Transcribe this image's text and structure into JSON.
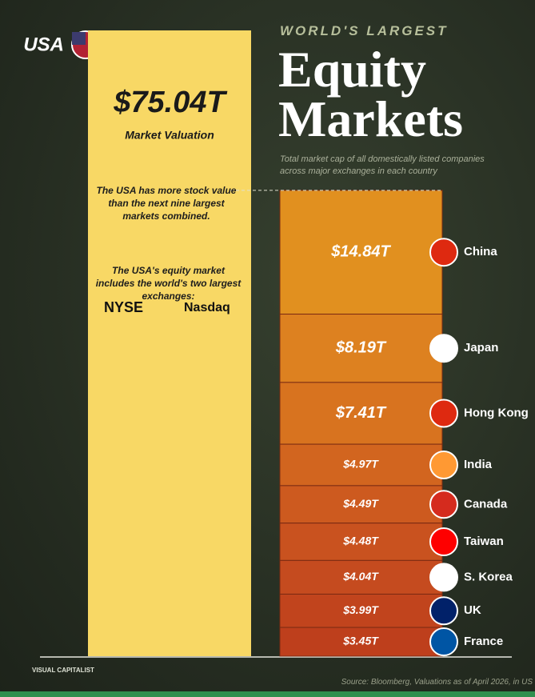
{
  "chart_data": {
    "type": "stack",
    "kicker": "WORLD'S LARGEST",
    "title_line1": "Equity",
    "title_line2": "Markets",
    "subtitle": "Total market cap of all domestically listed companies across major exchanges in each country",
    "usa": {
      "name": "USA",
      "value": 75.04,
      "value_label": "$75.04T",
      "label": "Market Valuation",
      "color": "#f8d865"
    },
    "annotation_1": "The USA has more stock value than the next nine largest markets combined.",
    "annotation_2": "The USA's equity market includes the world's two largest exchanges:",
    "exchanges": [
      "NYSE",
      "Nasdaq"
    ],
    "categories": [
      "China",
      "Japan",
      "Hong Kong",
      "India",
      "Canada",
      "Taiwan",
      "S. Korea",
      "UK",
      "France"
    ],
    "values": [
      14.84,
      8.19,
      7.41,
      4.97,
      4.49,
      4.48,
      4.04,
      3.99,
      3.45
    ],
    "value_labels": [
      "$14.84T",
      "$8.19T",
      "$7.41T",
      "$4.97T",
      "$4.49T",
      "$4.48T",
      "$4.04T",
      "$3.99T",
      "$3.45T"
    ],
    "colors": [
      "#e1901f",
      "#dd8120",
      "#d8731f",
      "#d2651f",
      "#cd5a1f",
      "#c9521f",
      "#c54b1f",
      "#c1441d",
      "#be3f1c"
    ],
    "brand": "VISUAL CAPITALIST",
    "source": "Source: Bloomberg, Valuations as of April 2026, in US"
  }
}
